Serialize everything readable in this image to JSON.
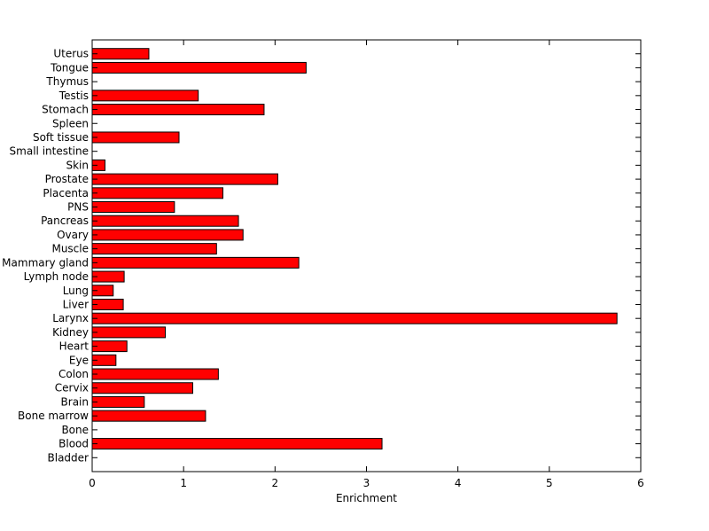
{
  "chart_data": {
    "type": "bar",
    "orientation": "horizontal",
    "title": "",
    "xlabel": "Enrichment",
    "ylabel": "",
    "xlim": [
      0,
      6
    ],
    "x_ticks": [
      0,
      1,
      2,
      3,
      4,
      5,
      6
    ],
    "grid": false,
    "bar_color": "#ff0000",
    "categories": [
      "Uterus",
      "Tongue",
      "Thymus",
      "Testis",
      "Stomach",
      "Spleen",
      "Soft tissue",
      "Small intestine",
      "Skin",
      "Prostate",
      "Placenta",
      "PNS",
      "Pancreas",
      "Ovary",
      "Muscle",
      "Mammary gland",
      "Lymph node",
      "Lung",
      "Liver",
      "Larynx",
      "Kidney",
      "Heart",
      "Eye",
      "Colon",
      "Cervix",
      "Brain",
      "Bone marrow",
      "Bone",
      "Blood",
      "Bladder"
    ],
    "values": [
      0.62,
      2.34,
      0,
      1.16,
      1.88,
      0,
      0.95,
      0,
      0.14,
      2.03,
      1.43,
      0.9,
      1.6,
      1.65,
      1.36,
      2.26,
      0.35,
      0.23,
      0.34,
      5.74,
      0.8,
      0.38,
      0.26,
      1.38,
      1.1,
      0.57,
      1.24,
      0,
      3.17,
      0
    ]
  }
}
